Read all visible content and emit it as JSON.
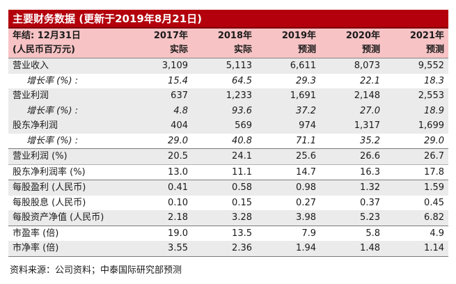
{
  "title": "主要财务数据 (更新于2019年8月21日)",
  "header": {
    "label_line1": "年结: 12月31日",
    "label_line2": "(人民币百万元)",
    "years": [
      "2017年",
      "2018年",
      "2019年",
      "2020年",
      "2021年"
    ],
    "types": [
      "实际",
      "实际",
      "预测",
      "预测",
      "预测"
    ]
  },
  "rows": [
    {
      "label": "营业收入",
      "values": [
        "3,109",
        "5,113",
        "6,611",
        "8,073",
        "9,552"
      ]
    },
    {
      "label": "增长率 (%) :",
      "values": [
        "15.4",
        "64.5",
        "29.3",
        "22.1",
        "18.3"
      ]
    },
    {
      "label": "营业利润",
      "values": [
        "637",
        "1,233",
        "1,691",
        "2,148",
        "2,553"
      ]
    },
    {
      "label": "增长率 (%) :",
      "values": [
        "4.8",
        "93.6",
        "37.2",
        "27.0",
        "18.9"
      ]
    },
    {
      "label": "股东净利润",
      "values": [
        "404",
        "569",
        "974",
        "1,317",
        "1,699"
      ]
    },
    {
      "label": "增长率 (%) :",
      "values": [
        "29.0",
        "40.8",
        "71.1",
        "35.2",
        "29.0"
      ]
    },
    {
      "label": "营业利润 (%)",
      "values": [
        "20.5",
        "24.1",
        "25.6",
        "26.6",
        "26.7"
      ]
    },
    {
      "label": "股东净利润率 (%)",
      "values": [
        "13.0",
        "11.1",
        "14.7",
        "16.3",
        "17.8"
      ]
    },
    {
      "label": "每股盈利 (人民币)",
      "values": [
        "0.41",
        "0.58",
        "0.98",
        "1.32",
        "1.59"
      ]
    },
    {
      "label": "每股股息 (人民币)",
      "values": [
        "0.10",
        "0.15",
        "0.27",
        "0.37",
        "0.45"
      ]
    },
    {
      "label": "每股资产净值 (人民币)",
      "values": [
        "2.18",
        "3.28",
        "3.98",
        "5.23",
        "6.82"
      ]
    },
    {
      "label": "市盈率 (倍)",
      "values": [
        "19.0",
        "13.5",
        "7.9",
        "5.8",
        "4.9"
      ]
    },
    {
      "label": "市净率 (倍)",
      "values": [
        "3.55",
        "2.36",
        "1.94",
        "1.48",
        "1.14"
      ]
    }
  ],
  "source": "资料来源：公司资料；中泰国际研究部预测"
}
